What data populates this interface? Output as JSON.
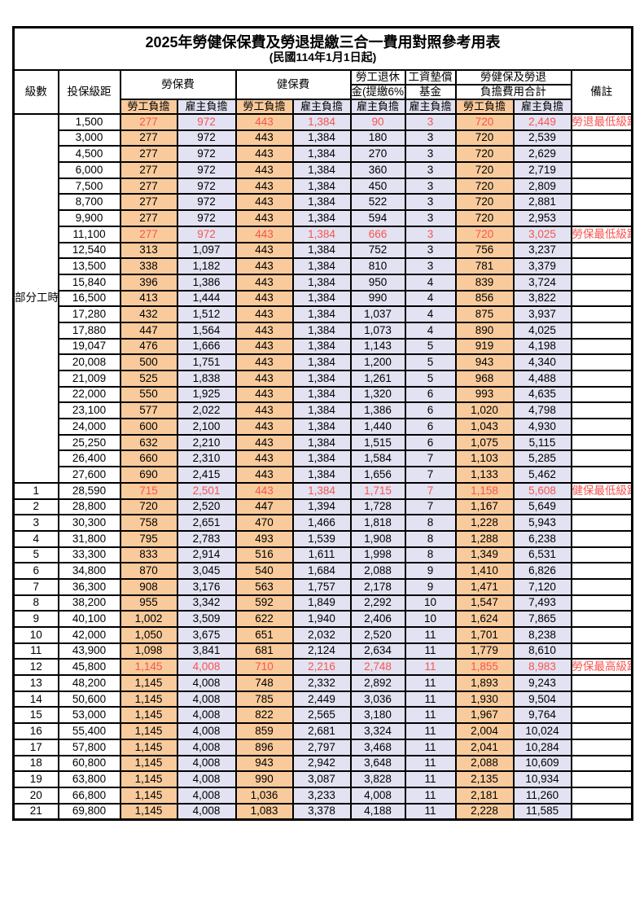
{
  "title": "2025年勞健保保費及勞退提繳三合一費用對照參考用表",
  "subtitle": "(民國114年1月1日起)",
  "colors": {
    "employee_column_bg": "#F9CB9C",
    "employer_column_bg": "#E2E2F2",
    "highlight_text": "#F9544E",
    "border": "#000000"
  },
  "header": {
    "level": "級數",
    "bracket": "投保級距",
    "labor_ins": "勞保費",
    "health_ins": "健保費",
    "pension_line1": "勞工退休",
    "pension_line2": "金(提繳6%)",
    "wage_fund_line1": "工資墊償",
    "wage_fund_line2": "基金",
    "total_line1": "勞健保及勞退",
    "total_line2": "負擔費用合計",
    "remark": "備註",
    "employee": "勞工負擔",
    "employer": "雇主負擔"
  },
  "table": {
    "part_time_label": "部分工時",
    "part_time_row_count": 23,
    "value_columns": [
      "labor-employee",
      "labor-employer",
      "health-employee",
      "health-employer",
      "pension-employer",
      "wage-fund-employer",
      "total-employee",
      "total-employer"
    ],
    "rows": [
      {
        "level": "",
        "bracket": "1,500",
        "v": [
          "277",
          "972",
          "443",
          "1,384",
          "90",
          "3",
          "720",
          "2,449"
        ],
        "remark": "勞退最低級距",
        "red": true,
        "big": false
      },
      {
        "level": "",
        "bracket": "3,000",
        "v": [
          "277",
          "972",
          "443",
          "1,384",
          "180",
          "3",
          "720",
          "2,539"
        ],
        "remark": "",
        "red": false,
        "big": false
      },
      {
        "level": "",
        "bracket": "4,500",
        "v": [
          "277",
          "972",
          "443",
          "1,384",
          "270",
          "3",
          "720",
          "2,629"
        ],
        "remark": "",
        "red": false,
        "big": false
      },
      {
        "level": "",
        "bracket": "6,000",
        "v": [
          "277",
          "972",
          "443",
          "1,384",
          "360",
          "3",
          "720",
          "2,719"
        ],
        "remark": "",
        "red": false,
        "big": false
      },
      {
        "level": "",
        "bracket": "7,500",
        "v": [
          "277",
          "972",
          "443",
          "1,384",
          "450",
          "3",
          "720",
          "2,809"
        ],
        "remark": "",
        "red": false,
        "big": false
      },
      {
        "level": "",
        "bracket": "8,700",
        "v": [
          "277",
          "972",
          "443",
          "1,384",
          "522",
          "3",
          "720",
          "2,881"
        ],
        "remark": "",
        "red": false,
        "big": false
      },
      {
        "level": "",
        "bracket": "9,900",
        "v": [
          "277",
          "972",
          "443",
          "1,384",
          "594",
          "3",
          "720",
          "2,953"
        ],
        "remark": "",
        "red": false,
        "big": false
      },
      {
        "level": "",
        "bracket": "11,100",
        "v": [
          "277",
          "972",
          "443",
          "1,384",
          "666",
          "3",
          "720",
          "3,025"
        ],
        "remark": "勞保最低級距",
        "red": true,
        "big": false
      },
      {
        "level": "",
        "bracket": "12,540",
        "v": [
          "313",
          "1,097",
          "443",
          "1,384",
          "752",
          "3",
          "756",
          "3,237"
        ],
        "remark": "",
        "red": false,
        "big": false
      },
      {
        "level": "",
        "bracket": "13,500",
        "v": [
          "338",
          "1,182",
          "443",
          "1,384",
          "810",
          "3",
          "781",
          "3,379"
        ],
        "remark": "",
        "red": false,
        "big": false
      },
      {
        "level": "",
        "bracket": "15,840",
        "v": [
          "396",
          "1,386",
          "443",
          "1,384",
          "950",
          "4",
          "839",
          "3,724"
        ],
        "remark": "",
        "red": false,
        "big": false
      },
      {
        "level": "",
        "bracket": "16,500",
        "v": [
          "413",
          "1,444",
          "443",
          "1,384",
          "990",
          "4",
          "856",
          "3,822"
        ],
        "remark": "",
        "red": false,
        "big": false
      },
      {
        "level": "",
        "bracket": "17,280",
        "v": [
          "432",
          "1,512",
          "443",
          "1,384",
          "1,037",
          "4",
          "875",
          "3,937"
        ],
        "remark": "",
        "red": false,
        "big": false
      },
      {
        "level": "",
        "bracket": "17,880",
        "v": [
          "447",
          "1,564",
          "443",
          "1,384",
          "1,073",
          "4",
          "890",
          "4,025"
        ],
        "remark": "",
        "red": false,
        "big": false
      },
      {
        "level": "",
        "bracket": "19,047",
        "v": [
          "476",
          "1,666",
          "443",
          "1,384",
          "1,143",
          "5",
          "919",
          "4,198"
        ],
        "remark": "",
        "red": false,
        "big": false
      },
      {
        "level": "",
        "bracket": "20,008",
        "v": [
          "500",
          "1,751",
          "443",
          "1,384",
          "1,200",
          "5",
          "943",
          "4,340"
        ],
        "remark": "",
        "red": false,
        "big": false
      },
      {
        "level": "",
        "bracket": "21,009",
        "v": [
          "525",
          "1,838",
          "443",
          "1,384",
          "1,261",
          "5",
          "968",
          "4,488"
        ],
        "remark": "",
        "red": false,
        "big": false
      },
      {
        "level": "",
        "bracket": "22,000",
        "v": [
          "550",
          "1,925",
          "443",
          "1,384",
          "1,320",
          "6",
          "993",
          "4,635"
        ],
        "remark": "",
        "red": false,
        "big": false
      },
      {
        "level": "",
        "bracket": "23,100",
        "v": [
          "577",
          "2,022",
          "443",
          "1,384",
          "1,386",
          "6",
          "1,020",
          "4,798"
        ],
        "remark": "",
        "red": false,
        "big": false
      },
      {
        "level": "",
        "bracket": "24,000",
        "v": [
          "600",
          "2,100",
          "443",
          "1,384",
          "1,440",
          "6",
          "1,043",
          "4,930"
        ],
        "remark": "",
        "red": false,
        "big": false
      },
      {
        "level": "",
        "bracket": "25,250",
        "v": [
          "632",
          "2,210",
          "443",
          "1,384",
          "1,515",
          "6",
          "1,075",
          "5,115"
        ],
        "remark": "",
        "red": false,
        "big": false
      },
      {
        "level": "",
        "bracket": "26,400",
        "v": [
          "660",
          "2,310",
          "443",
          "1,384",
          "1,584",
          "7",
          "1,103",
          "5,285"
        ],
        "remark": "",
        "red": false,
        "big": false
      },
      {
        "level": "",
        "bracket": "27,600",
        "v": [
          "690",
          "2,415",
          "443",
          "1,384",
          "1,656",
          "7",
          "1,133",
          "5,462"
        ],
        "remark": "",
        "red": false,
        "big": false
      },
      {
        "level": "1",
        "bracket": "28,590",
        "v": [
          "715",
          "2,501",
          "443",
          "1,384",
          "1,715",
          "7",
          "1,158",
          "5,608"
        ],
        "remark": "健保最低級距",
        "red": true,
        "big": true
      },
      {
        "level": "2",
        "bracket": "28,800",
        "v": [
          "720",
          "2,520",
          "447",
          "1,394",
          "1,728",
          "7",
          "1,167",
          "5,649"
        ],
        "remark": "",
        "red": false,
        "big": false
      },
      {
        "level": "3",
        "bracket": "30,300",
        "v": [
          "758",
          "2,651",
          "470",
          "1,466",
          "1,818",
          "8",
          "1,228",
          "5,943"
        ],
        "remark": "",
        "red": false,
        "big": false
      },
      {
        "level": "4",
        "bracket": "31,800",
        "v": [
          "795",
          "2,783",
          "493",
          "1,539",
          "1,908",
          "8",
          "1,288",
          "6,238"
        ],
        "remark": "",
        "red": false,
        "big": false
      },
      {
        "level": "5",
        "bracket": "33,300",
        "v": [
          "833",
          "2,914",
          "516",
          "1,611",
          "1,998",
          "8",
          "1,349",
          "6,531"
        ],
        "remark": "",
        "red": false,
        "big": false
      },
      {
        "level": "6",
        "bracket": "34,800",
        "v": [
          "870",
          "3,045",
          "540",
          "1,684",
          "2,088",
          "9",
          "1,410",
          "6,826"
        ],
        "remark": "",
        "red": false,
        "big": false
      },
      {
        "level": "7",
        "bracket": "36,300",
        "v": [
          "908",
          "3,176",
          "563",
          "1,757",
          "2,178",
          "9",
          "1,471",
          "7,120"
        ],
        "remark": "",
        "red": false,
        "big": false
      },
      {
        "level": "8",
        "bracket": "38,200",
        "v": [
          "955",
          "3,342",
          "592",
          "1,849",
          "2,292",
          "10",
          "1,547",
          "7,493"
        ],
        "remark": "",
        "red": false,
        "big": false
      },
      {
        "level": "9",
        "bracket": "40,100",
        "v": [
          "1,002",
          "3,509",
          "622",
          "1,940",
          "2,406",
          "10",
          "1,624",
          "7,865"
        ],
        "remark": "",
        "red": false,
        "big": false
      },
      {
        "level": "10",
        "bracket": "42,000",
        "v": [
          "1,050",
          "3,675",
          "651",
          "2,032",
          "2,520",
          "11",
          "1,701",
          "8,238"
        ],
        "remark": "",
        "red": false,
        "big": false
      },
      {
        "level": "11",
        "bracket": "43,900",
        "v": [
          "1,098",
          "3,841",
          "681",
          "2,124",
          "2,634",
          "11",
          "1,779",
          "8,610"
        ],
        "remark": "",
        "red": false,
        "big": false
      },
      {
        "level": "12",
        "bracket": "45,800",
        "v": [
          "1,145",
          "4,008",
          "710",
          "2,216",
          "2,748",
          "11",
          "1,855",
          "8,983"
        ],
        "remark": "勞保最高級距",
        "red": true,
        "big": true
      },
      {
        "level": "13",
        "bracket": "48,200",
        "v": [
          "1,145",
          "4,008",
          "748",
          "2,332",
          "2,892",
          "11",
          "1,893",
          "9,243"
        ],
        "remark": "",
        "red": false,
        "big": false
      },
      {
        "level": "14",
        "bracket": "50,600",
        "v": [
          "1,145",
          "4,008",
          "785",
          "2,449",
          "3,036",
          "11",
          "1,930",
          "9,504"
        ],
        "remark": "",
        "red": false,
        "big": false
      },
      {
        "level": "15",
        "bracket": "53,000",
        "v": [
          "1,145",
          "4,008",
          "822",
          "2,565",
          "3,180",
          "11",
          "1,967",
          "9,764"
        ],
        "remark": "",
        "red": false,
        "big": false
      },
      {
        "level": "16",
        "bracket": "55,400",
        "v": [
          "1,145",
          "4,008",
          "859",
          "2,681",
          "3,324",
          "11",
          "2,004",
          "10,024"
        ],
        "remark": "",
        "red": false,
        "big": false
      },
      {
        "level": "17",
        "bracket": "57,800",
        "v": [
          "1,145",
          "4,008",
          "896",
          "2,797",
          "3,468",
          "11",
          "2,041",
          "10,284"
        ],
        "remark": "",
        "red": false,
        "big": false
      },
      {
        "level": "18",
        "bracket": "60,800",
        "v": [
          "1,145",
          "4,008",
          "943",
          "2,942",
          "3,648",
          "11",
          "2,088",
          "10,609"
        ],
        "remark": "",
        "red": false,
        "big": false
      },
      {
        "level": "19",
        "bracket": "63,800",
        "v": [
          "1,145",
          "4,008",
          "990",
          "3,087",
          "3,828",
          "11",
          "2,135",
          "10,934"
        ],
        "remark": "",
        "red": false,
        "big": false
      },
      {
        "level": "20",
        "bracket": "66,800",
        "v": [
          "1,145",
          "4,008",
          "1,036",
          "3,233",
          "4,008",
          "11",
          "2,181",
          "11,260"
        ],
        "remark": "",
        "red": false,
        "big": false
      },
      {
        "level": "21",
        "bracket": "69,800",
        "v": [
          "1,145",
          "4,008",
          "1,083",
          "3,378",
          "4,188",
          "11",
          "2,228",
          "11,585"
        ],
        "remark": "",
        "red": false,
        "big": false
      }
    ]
  }
}
